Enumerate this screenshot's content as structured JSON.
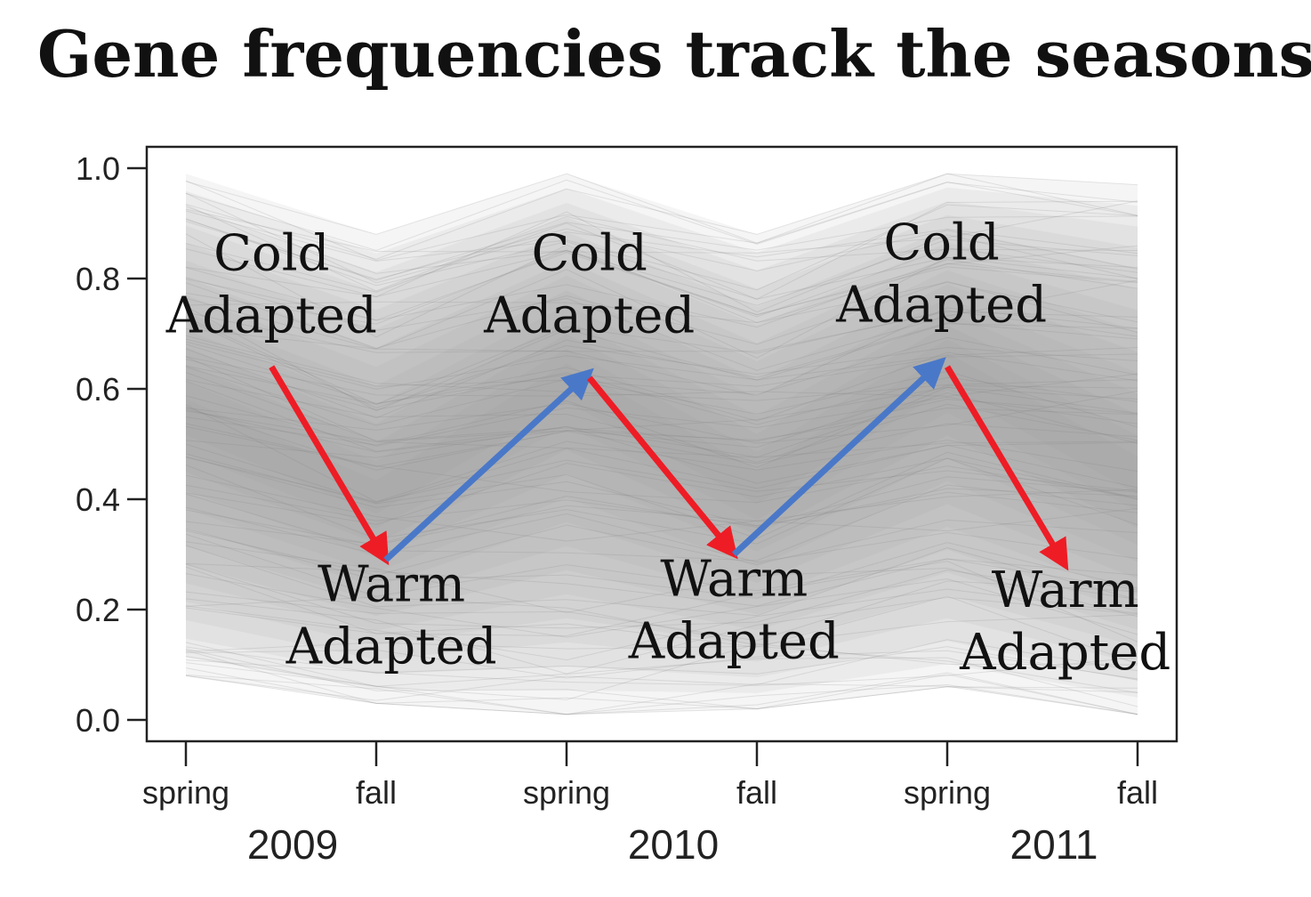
{
  "title": "Gene frequencies track the seasons",
  "chart_data": {
    "type": "line",
    "title": "Gene frequencies track the seasons",
    "xlabel": "",
    "ylabel": "",
    "ylim": [
      0,
      1
    ],
    "yticks": [
      "0.0",
      "0.2",
      "0.4",
      "0.6",
      "0.8",
      "1.0"
    ],
    "ytick_values": [
      0.0,
      0.2,
      0.4,
      0.6,
      0.8,
      1.0
    ],
    "x": [
      "spring 2009",
      "fall 2009",
      "spring 2010",
      "fall 2010",
      "spring 2011",
      "fall 2011"
    ],
    "xticks": [
      "spring",
      "fall",
      "spring",
      "fall",
      "spring",
      "fall"
    ],
    "year_labels": [
      {
        "label": "2009",
        "between": [
          0,
          1
        ]
      },
      {
        "label": "2010",
        "between": [
          2,
          3
        ]
      },
      {
        "label": "2011",
        "between": [
          4,
          5
        ]
      }
    ],
    "grid": false,
    "legend": "none",
    "series_description_color": "#8c8c8c",
    "envelope": {
      "upper": [
        0.99,
        0.88,
        0.99,
        0.88,
        0.99,
        0.97
      ],
      "lower": [
        0.08,
        0.03,
        0.01,
        0.02,
        0.06,
        0.01
      ]
    },
    "median_path": [
      0.55,
      0.4,
      0.62,
      0.42,
      0.64,
      0.44
    ],
    "arrows": [
      {
        "from": [
          0.45,
          0.64
        ],
        "to": [
          1.05,
          0.29
        ],
        "direction": "down",
        "color": "#ee1c25"
      },
      {
        "from": [
          1.05,
          0.29
        ],
        "to": [
          2.12,
          0.63
        ],
        "direction": "up",
        "color": "#4a78c8"
      },
      {
        "from": [
          2.12,
          0.62
        ],
        "to": [
          2.88,
          0.3
        ],
        "direction": "down",
        "color": "#ee1c25"
      },
      {
        "from": [
          2.88,
          0.3
        ],
        "to": [
          3.97,
          0.65
        ],
        "direction": "up",
        "color": "#4a78c8"
      },
      {
        "from": [
          4.0,
          0.64
        ],
        "to": [
          4.62,
          0.28
        ],
        "direction": "down",
        "color": "#ee1c25"
      }
    ],
    "annotations": [
      {
        "lines": [
          "Cold",
          "Adapted"
        ],
        "x": 0.45,
        "y": 0.815
      },
      {
        "lines": [
          "Warm",
          "Adapted"
        ],
        "x": 1.08,
        "y": 0.215
      },
      {
        "lines": [
          "Cold",
          "Adapted"
        ],
        "x": 2.12,
        "y": 0.815
      },
      {
        "lines": [
          "Warm",
          "Adapted"
        ],
        "x": 2.88,
        "y": 0.225
      },
      {
        "lines": [
          "Cold",
          "Adapted"
        ],
        "x": 3.97,
        "y": 0.835
      },
      {
        "lines": [
          "Warm",
          "Adapted"
        ],
        "x": 4.62,
        "y": 0.205
      }
    ]
  }
}
